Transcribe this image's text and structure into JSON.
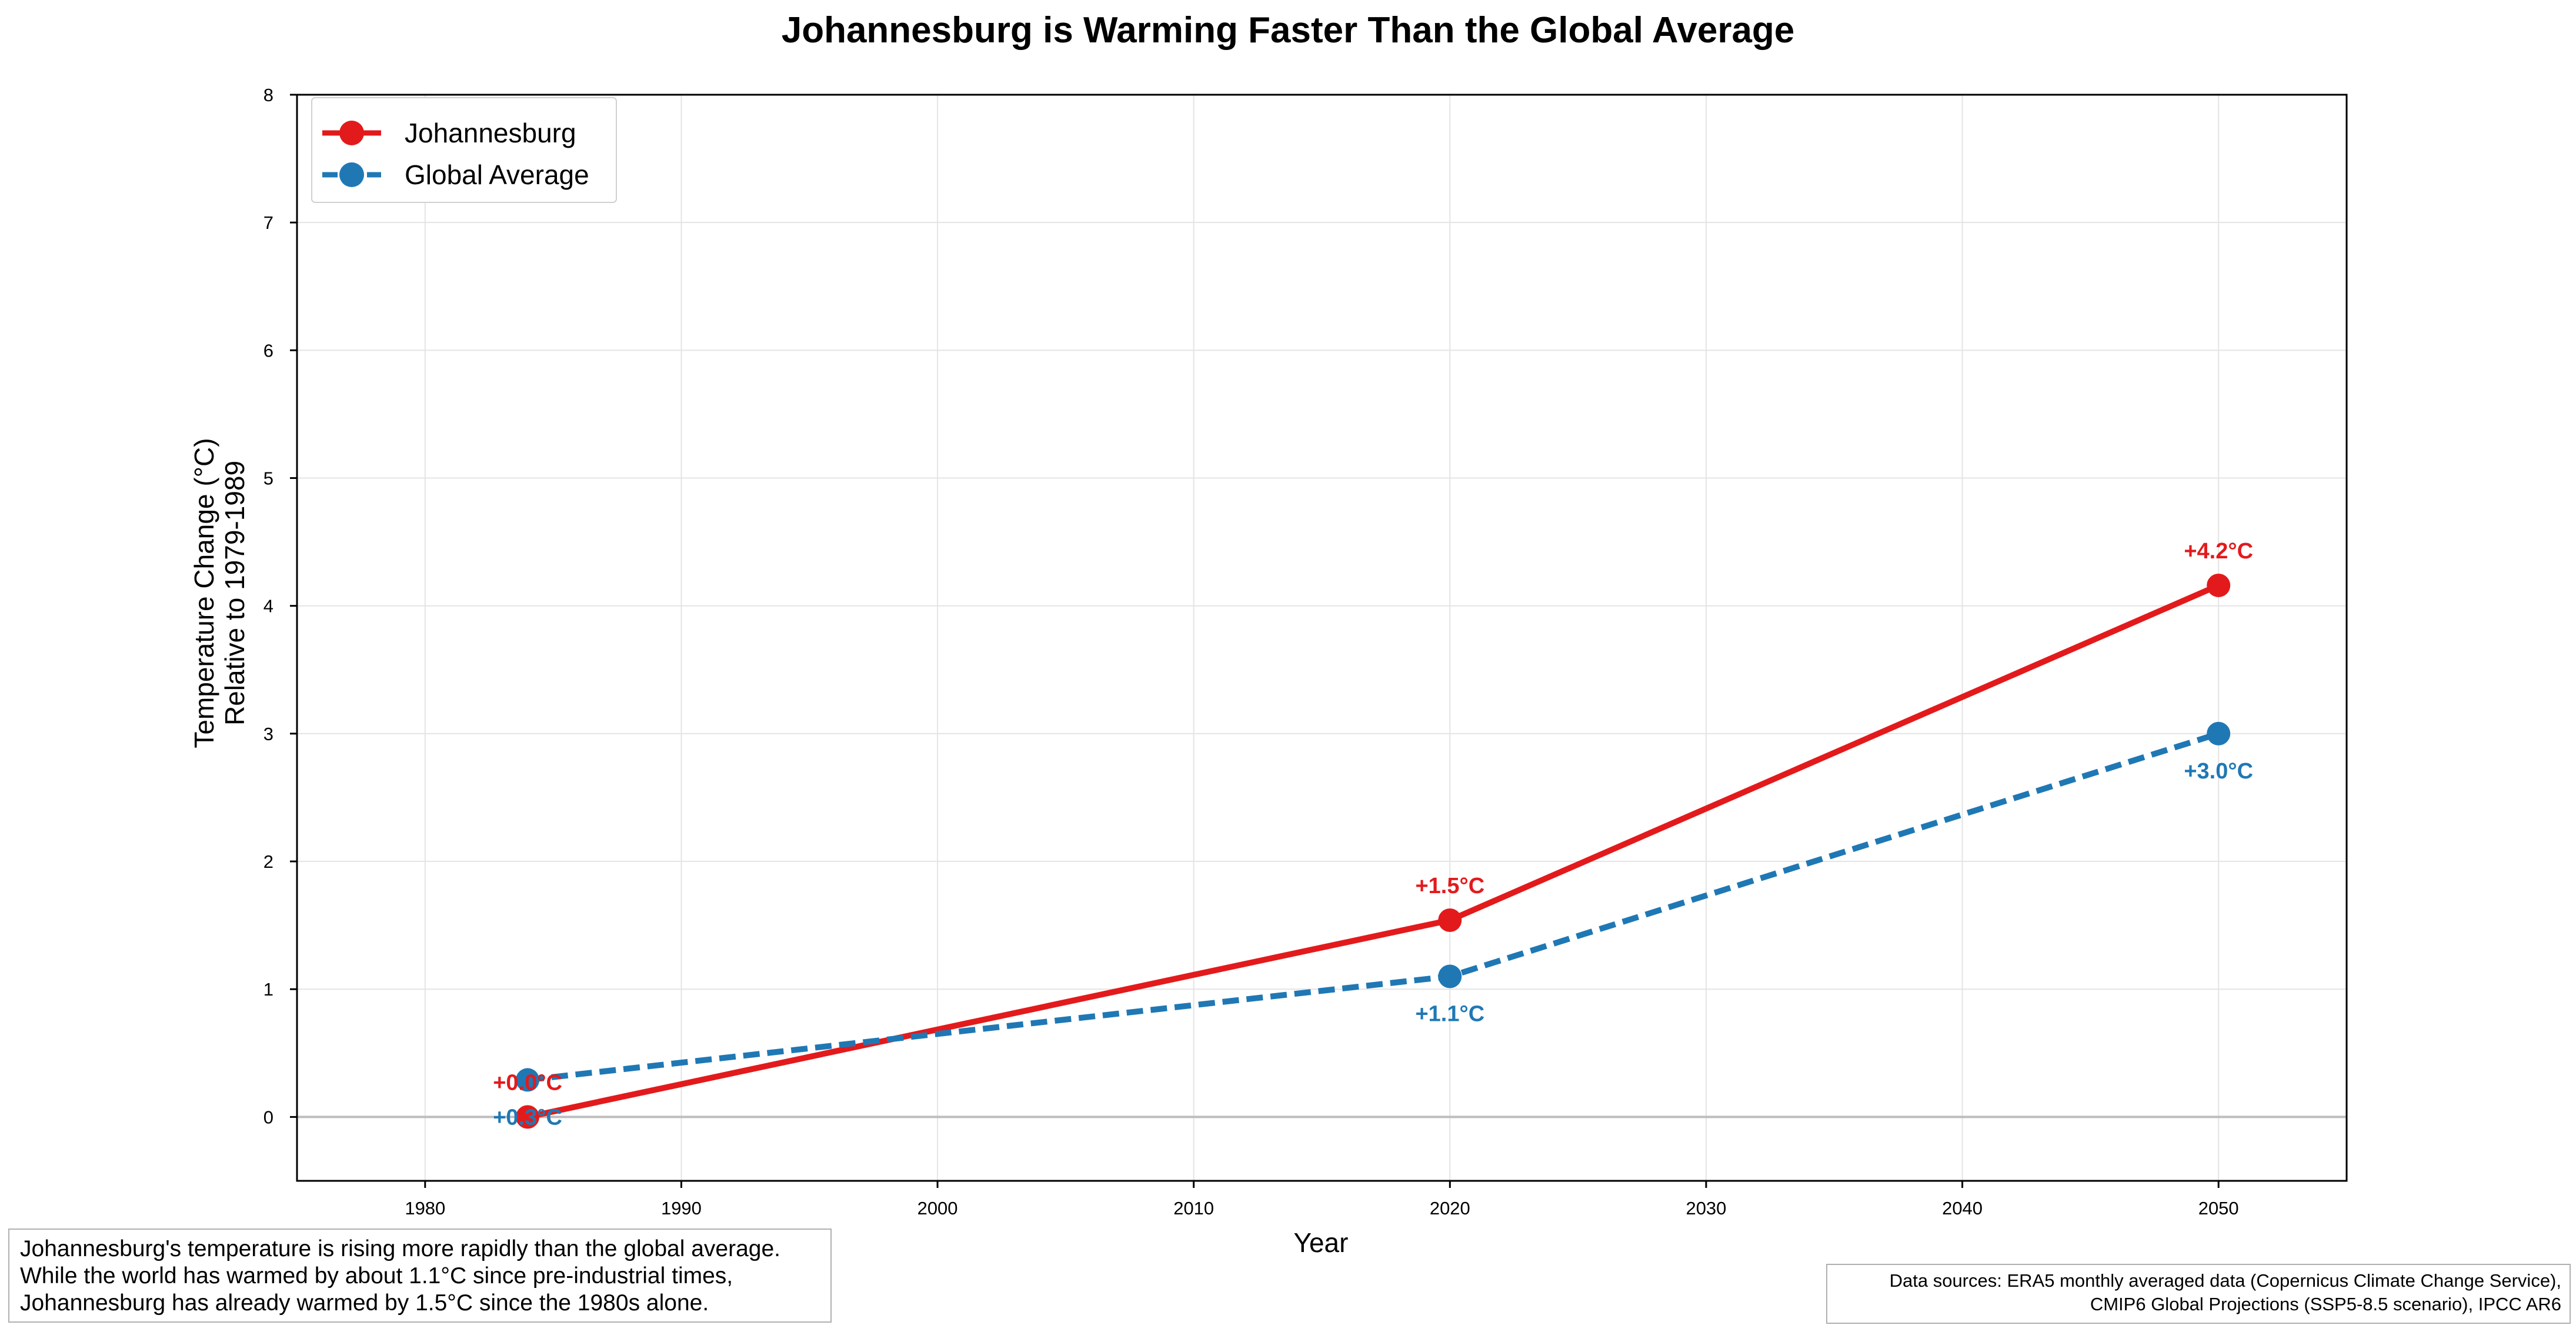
{
  "chart_data": {
    "type": "line",
    "title": "Johannesburg is Warming Faster Than the Global Average",
    "xlabel": "Year",
    "ylabel_lines": [
      "Temperature Change (°C)",
      "Relative to 1979-1989"
    ],
    "xlim": [
      1975,
      2055
    ],
    "ylim": [
      -0.5,
      8
    ],
    "x_ticks": [
      1980,
      1990,
      2000,
      2010,
      2020,
      2030,
      2040,
      2050
    ],
    "y_ticks": [
      0,
      1,
      2,
      3,
      4,
      5,
      6,
      7,
      8
    ],
    "grid": true,
    "legend_position": "top-left",
    "series": [
      {
        "name": "Johannesburg",
        "color": "#e31a1c",
        "line_style": "solid",
        "marker": "circle",
        "x": [
          1984,
          2020,
          2050
        ],
        "y": [
          0.0,
          1.54,
          4.16
        ],
        "labels": [
          "+0.0°C",
          "+1.5°C",
          "+4.2°C"
        ],
        "label_position": "above"
      },
      {
        "name": "Global Average",
        "color": "#1f78b4",
        "line_style": "dashed",
        "marker": "circle",
        "x": [
          1984,
          2020,
          2050
        ],
        "y": [
          0.29,
          1.1,
          3.0
        ],
        "labels": [
          "+0.3°C",
          "+1.1°C",
          "+3.0°C"
        ],
        "label_position": "below"
      }
    ],
    "annotation_text": [
      "Johannesburg's temperature is rising more rapidly than the global average.",
      "While the world has warmed by about 1.1°C since pre-industrial times,",
      "Johannesburg has already warmed by 1.5°C since the 1980s alone."
    ],
    "source_text": [
      "Data sources: ERA5 monthly averaged data (Copernicus Climate Change Service),",
      "CMIP6 Global Projections (SSP5-8.5 scenario), IPCC AR6"
    ]
  }
}
